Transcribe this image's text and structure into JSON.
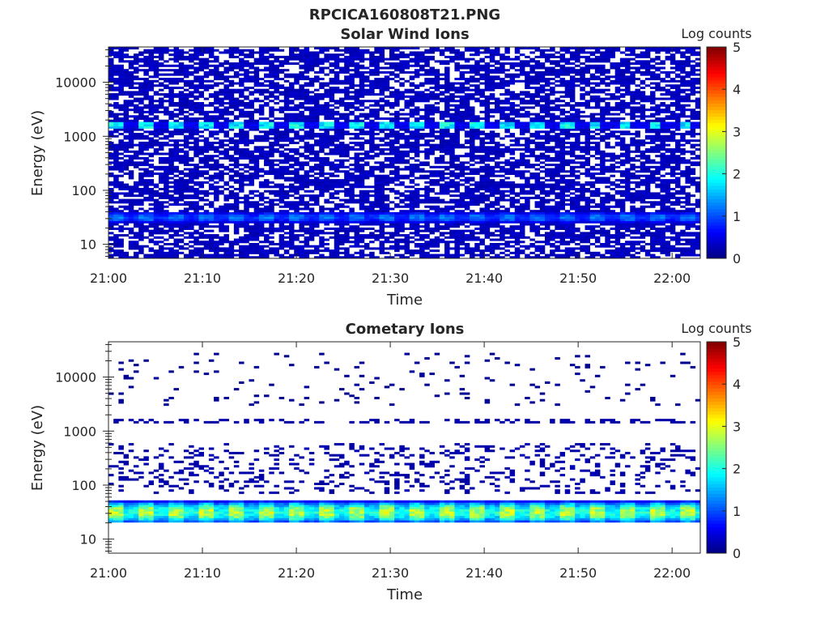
{
  "figure": {
    "title": "RPCICA160808T21.PNG"
  },
  "chart_data": [
    {
      "type": "heatmap",
      "title": "Solar Wind Ions",
      "xlabel": "Time",
      "ylabel": "Energy (eV)",
      "y_scale": "log",
      "ylim": [
        5.5,
        45000
      ],
      "xlim": [
        "21:00",
        "22:03"
      ],
      "x_ticks": [
        "21:00",
        "21:10",
        "21:20",
        "21:30",
        "21:40",
        "21:50",
        "22:00"
      ],
      "y_ticks": [
        "10",
        "100",
        "1000",
        "10000"
      ],
      "y_tick_values": [
        10,
        100,
        1000,
        10000
      ],
      "colorbar": {
        "label": "Log counts",
        "ticks": [
          "0",
          "1",
          "2",
          "3",
          "4",
          "5"
        ],
        "range": [
          0,
          5
        ]
      },
      "features": [
        {
          "name": "solar wind proton band",
          "energy_eV": 1600,
          "log_counts_peak": 1.8,
          "period_min": 3.2
        },
        {
          "name": "low energy band",
          "energy_range_eV": [
            25,
            40
          ],
          "log_counts_peak": 1.2
        },
        {
          "name": "background",
          "energy_range_eV": [
            5.5,
            45000
          ],
          "log_counts": 0.3,
          "coverage": "sparse"
        }
      ]
    },
    {
      "type": "heatmap",
      "title": "Cometary Ions",
      "xlabel": "Time",
      "ylabel": "Energy (eV)",
      "y_scale": "log",
      "ylim": [
        5.5,
        45000
      ],
      "xlim": [
        "21:00",
        "22:03"
      ],
      "x_ticks": [
        "21:00",
        "21:10",
        "21:20",
        "21:30",
        "21:40",
        "21:50",
        "22:00"
      ],
      "y_ticks": [
        "10",
        "100",
        "1000",
        "10000"
      ],
      "y_tick_values": [
        10,
        100,
        1000,
        10000
      ],
      "colorbar": {
        "label": "Log counts",
        "ticks": [
          "0",
          "1",
          "2",
          "3",
          "4",
          "5"
        ],
        "range": [
          0,
          5
        ]
      },
      "features": [
        {
          "name": "cometary ion band",
          "energy_range_eV": [
            20,
            50
          ],
          "log_counts_peak": 2.8,
          "period_min": 3.2
        },
        {
          "name": "mid energy counts",
          "energy_range_eV": [
            70,
            600
          ],
          "log_counts": 0.2,
          "coverage": "sparse"
        },
        {
          "name": "1.6 keV counts",
          "energy_eV": 1600,
          "log_counts": 0.2,
          "coverage": "sparse"
        },
        {
          "name": "high energy counts",
          "energy_range_eV": [
            3000,
            30000
          ],
          "log_counts": 0.1,
          "coverage": "very sparse"
        }
      ]
    }
  ]
}
